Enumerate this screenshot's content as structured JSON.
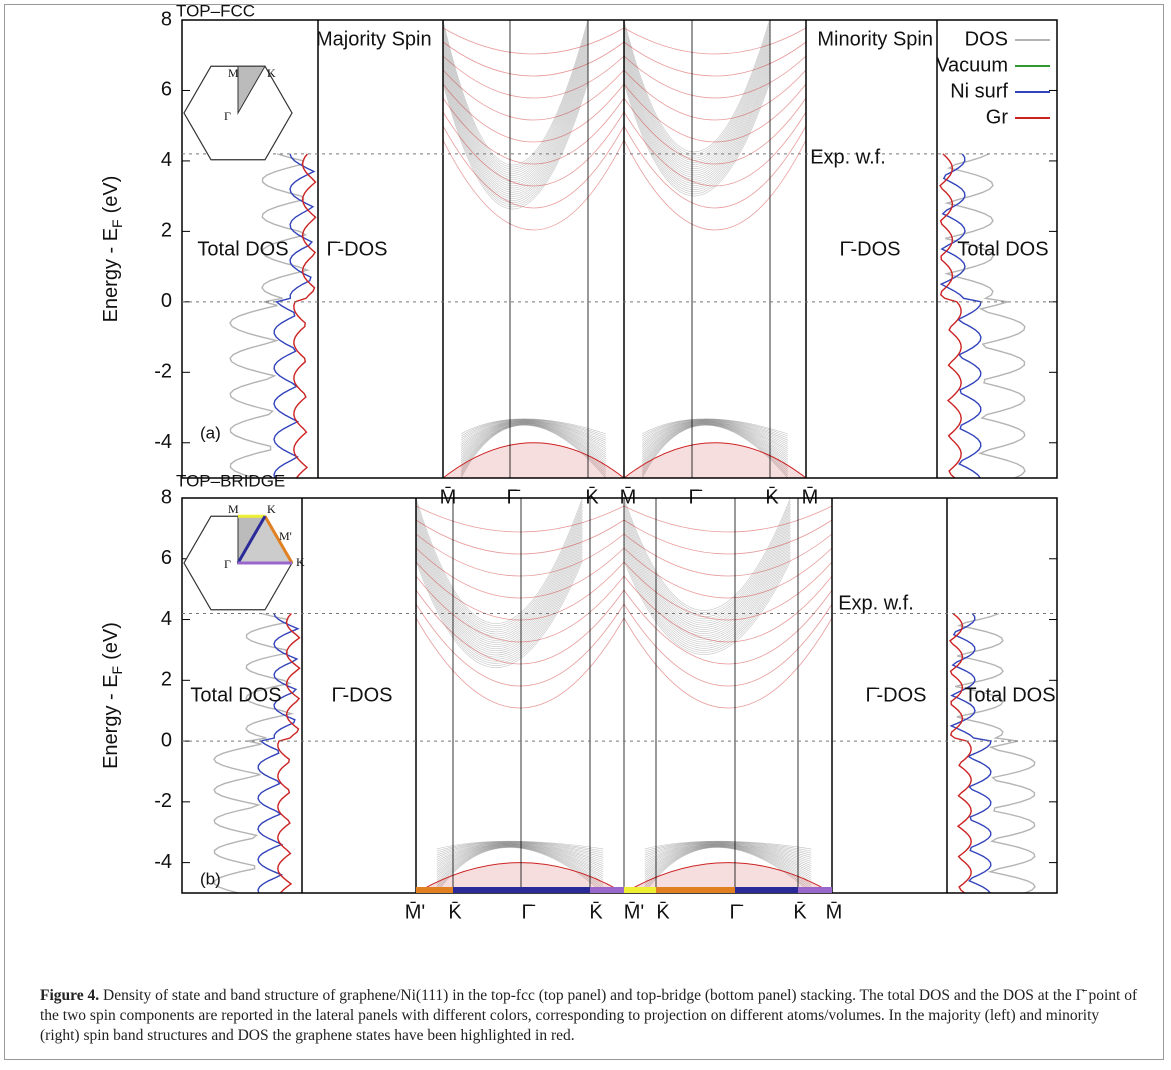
{
  "figure": {
    "panels": [
      {
        "label": "(a)",
        "stacking": "TOP–FCC",
        "titles": [
          "Majority Spin",
          "Minority Spin"
        ],
        "y_label": "Energy - E",
        "y_label_sub": "F",
        "y_label_unit": "(eV)",
        "ylim": [
          -5,
          8
        ],
        "yticks": [
          -4,
          -2,
          0,
          2,
          4,
          6,
          8
        ],
        "wf_energy": 4.2,
        "dos_labels": [
          "Total DOS",
          "Γ̄-DOS",
          "Γ̄-DOS",
          "Total DOS"
        ],
        "kpoints": [
          "M̄",
          "Γ̄",
          "K̄",
          "M̄",
          "Γ̄",
          "K̄",
          "M̄"
        ],
        "exp_wf": "Exp. w.f.",
        "bz_labels": [
          "M",
          "K",
          "Γ"
        ]
      },
      {
        "label": "(b)",
        "stacking": "TOP–BRIDGE",
        "y_label": "Energy - E",
        "y_label_sub": "F",
        "y_label_unit": "(eV)",
        "ylim": [
          -5,
          8
        ],
        "yticks": [
          -4,
          -2,
          0,
          2,
          4,
          6,
          8
        ],
        "wf_energy": 4.2,
        "dos_labels": [
          "Total DOS",
          "Γ̄-DOS",
          "Γ̄-DOS",
          "Total DOS"
        ],
        "kpoints": [
          "M̄'",
          "K̄",
          "Γ̄",
          "K̄",
          "M̄'",
          "K̄",
          "Γ̄",
          "K̄",
          "M̄"
        ],
        "exp_wf": "Exp. w.f.",
        "bz_labels": [
          "M",
          "K",
          "M'",
          "Γ",
          "K"
        ]
      }
    ],
    "legend": [
      {
        "name": "DOS",
        "color": "#b4b4b4"
      },
      {
        "name": "Vacuum",
        "color": "#2e9a2e"
      },
      {
        "name": "Ni surf",
        "color": "#3344bb"
      },
      {
        "name": "Gr",
        "color": "#cc2222"
      }
    ],
    "caption": {
      "label": "Figure 4.",
      "text": "Density of state and band structure of graphene/Ni(111) in the top-fcc (top panel) and top-bridge (bottom panel) stacking. The total DOS and the DOS at the Γ̄ point of the two spin components are reported in the lateral panels with different colors, corresponding to projection on different atoms/volumes. In the majority (left) and minority (right) spin band structures and DOS the graphene states have been highlighted in red."
    }
  }
}
